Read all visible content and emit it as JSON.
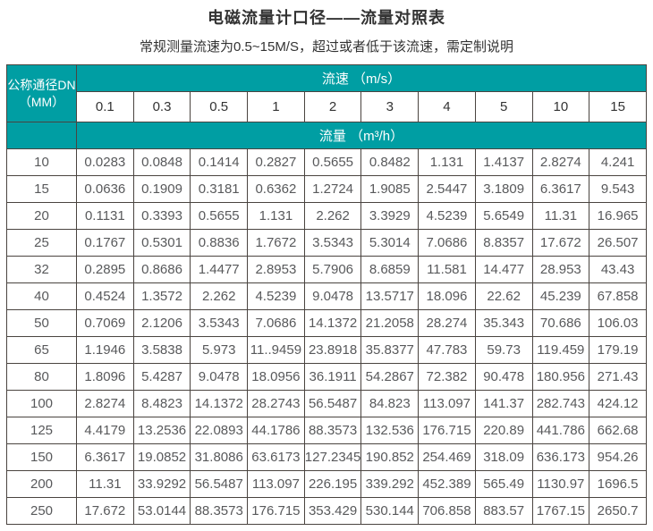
{
  "page": {
    "title": "电磁流量计口径——流量对照表",
    "subtitle": "常规测量流速为0.5~15M/S，超过或者低于该流速，需定制说明"
  },
  "colors": {
    "header_teal": "#009EA3",
    "border": "#4a4440",
    "title_text": "#333333",
    "cell_text": "#58595B"
  },
  "chart_data": {
    "type": "table",
    "corner_header": {
      "line1": "公称通径DN",
      "line2": "（MM）"
    },
    "velocity_group_header": "流速 （m/s）",
    "flow_group_header": "流量 （m³/h）",
    "velocity_columns": [
      "0.1",
      "0.3",
      "0.5",
      "1",
      "2",
      "3",
      "4",
      "5",
      "10",
      "15"
    ],
    "rows": [
      {
        "dn": "10",
        "values": [
          "0.0283",
          "0.0848",
          "0.1414",
          "0.2827",
          "0.5655",
          "0.8482",
          "1.131",
          "1.4137",
          "2.8274",
          "4.241"
        ]
      },
      {
        "dn": "15",
        "values": [
          "0.0636",
          "0.1909",
          "0.3181",
          "0.6362",
          "1.2724",
          "1.9085",
          "2.5447",
          "3.1809",
          "6.3617",
          "9.543"
        ]
      },
      {
        "dn": "20",
        "values": [
          "0.1131",
          "0.3393",
          "0.5655",
          "1.131",
          "2.262",
          "3.3929",
          "4.5239",
          "5.6549",
          "11.31",
          "16.965"
        ]
      },
      {
        "dn": "25",
        "values": [
          "0.1767",
          "0.5301",
          "0.8836",
          "1.7672",
          "3.5343",
          "5.3014",
          "7.0686",
          "8.8357",
          "17.672",
          "26.507"
        ]
      },
      {
        "dn": "32",
        "values": [
          "0.2895",
          "0.8686",
          "1.4477",
          "2.8953",
          "5.7906",
          "8.6859",
          "11.581",
          "14.477",
          "28.953",
          "43.43"
        ]
      },
      {
        "dn": "40",
        "values": [
          "0.4524",
          "1.3572",
          "2.262",
          "4.5239",
          "9.0478",
          "13.5717",
          "18.096",
          "22.62",
          "45.239",
          "67.858"
        ]
      },
      {
        "dn": "50",
        "values": [
          "0.7069",
          "2.1206",
          "3.5343",
          "7.0686",
          "14.1372",
          "21.2058",
          "28.274",
          "35.343",
          "70.686",
          "106.03"
        ]
      },
      {
        "dn": "65",
        "values": [
          "1.1946",
          "3.5838",
          "5.973",
          "11..9459",
          "23.8918",
          "35.8377",
          "47.783",
          "59.73",
          "119.459",
          "179.19"
        ]
      },
      {
        "dn": "80",
        "values": [
          "1.8096",
          "5.4287",
          "9.0478",
          "18.0956",
          "36.1911",
          "54.2867",
          "72.382",
          "90.478",
          "180.956",
          "271.43"
        ]
      },
      {
        "dn": "100",
        "values": [
          "2.8274",
          "8.4823",
          "14.1372",
          "28.2743",
          "56.5487",
          "84.823",
          "113.097",
          "141.37",
          "282.743",
          "424.12"
        ]
      },
      {
        "dn": "125",
        "values": [
          "4.4179",
          "13.2536",
          "22.0893",
          "44.1786",
          "88.3573",
          "132.536",
          "176.715",
          "220.89",
          "441.786",
          "662.68"
        ]
      },
      {
        "dn": "150",
        "values": [
          "6.3617",
          "19.0852",
          "31.8086",
          "63.6173",
          "127.2345",
          "190.852",
          "254.469",
          "318.09",
          "636.173",
          "954.26"
        ]
      },
      {
        "dn": "200",
        "values": [
          "11.31",
          "33.9292",
          "56.5487",
          "113.097",
          "226.195",
          "339.292",
          "452.389",
          "565.49",
          "1130.97",
          "1696.5"
        ]
      },
      {
        "dn": "250",
        "values": [
          "17.672",
          "53.0144",
          "88.3573",
          "176.715",
          "353.429",
          "530.144",
          "706.858",
          "883.57",
          "1767.15",
          "2650.7"
        ]
      }
    ]
  }
}
